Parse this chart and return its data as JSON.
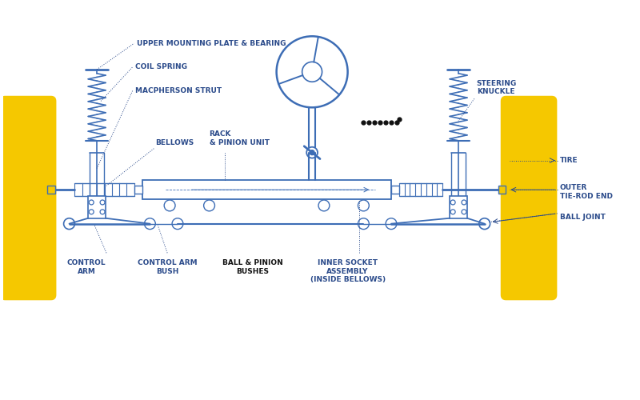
{
  "bg_color": "#ffffff",
  "lc": "#3d6db5",
  "tc": "#2a4a8a",
  "yc": "#f5c800",
  "figsize": [
    8.0,
    5.0
  ],
  "dpi": 100,
  "labels": {
    "upper_mounting": "UPPER MOUNTING PLATE & BEARING",
    "coil_spring": "COIL SPRING",
    "macpherson": "MACPHERSON STRUT",
    "bellows": "BELLOWS",
    "rack_pinion": "RACK\n& PINION UNIT",
    "control_arm": "CONTROL\nARM",
    "control_arm_bush": "CONTROL ARM\nBUSH",
    "inner_socket": "INNER SOCKET\nASSEMBLY\n(INSIDE BELLOWS)",
    "steering_knuckle": "STEERING\nKNUCKLE",
    "tire": "TIRE",
    "outer_tie_rod": "OUTER\nTIE-ROD END",
    "ball_joint": "BALL JOINT",
    "obscured_center": "BALL & PINION\nBUSHES"
  }
}
